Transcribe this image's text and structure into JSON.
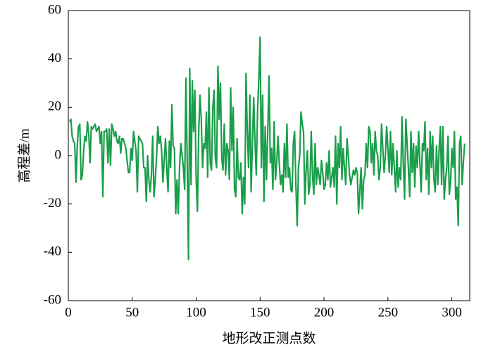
{
  "chart_data": {
    "type": "line",
    "xlabel": "地形改正测点数",
    "ylabel": "高程差/m",
    "xlim": [
      0,
      314
    ],
    "xticks": [
      0,
      50,
      100,
      150,
      200,
      250,
      300
    ],
    "ylim": [
      -60,
      60
    ],
    "yticks": [
      -60,
      -40,
      -20,
      0,
      20,
      40,
      60
    ],
    "series": [
      {
        "color": "#1a9e4a",
        "x": [
          1,
          2,
          3,
          4,
          5,
          6,
          7,
          8,
          9,
          10,
          11,
          12,
          13,
          14,
          15,
          16,
          17,
          18,
          19,
          20,
          21,
          22,
          23,
          24,
          25,
          26,
          27,
          28,
          29,
          30,
          31,
          32,
          33,
          34,
          35,
          36,
          37,
          38,
          39,
          40,
          41,
          42,
          43,
          44,
          45,
          46,
          47,
          48,
          49,
          50,
          51,
          52,
          53,
          54,
          55,
          56,
          57,
          58,
          59,
          60,
          61,
          62,
          63,
          64,
          65,
          66,
          67,
          68,
          69,
          70,
          71,
          72,
          73,
          74,
          75,
          76,
          77,
          78,
          79,
          80,
          81,
          82,
          83,
          84,
          85,
          86,
          87,
          88,
          89,
          90,
          91,
          92,
          93,
          94,
          95,
          96,
          97,
          98,
          99,
          100,
          101,
          102,
          103,
          104,
          105,
          106,
          107,
          108,
          109,
          110,
          111,
          112,
          113,
          114,
          115,
          116,
          117,
          118,
          119,
          120,
          121,
          122,
          123,
          124,
          125,
          126,
          127,
          128,
          129,
          130,
          131,
          132,
          133,
          134,
          135,
          136,
          137,
          138,
          139,
          140,
          141,
          142,
          143,
          144,
          145,
          146,
          147,
          148,
          149,
          150,
          151,
          152,
          153,
          154,
          155,
          156,
          157,
          158,
          159,
          160,
          161,
          162,
          163,
          164,
          165,
          166,
          167,
          168,
          169,
          170,
          171,
          172,
          173,
          174,
          175,
          176,
          177,
          178,
          179,
          180,
          181,
          182,
          183,
          184,
          185,
          186,
          187,
          188,
          189,
          190,
          191,
          192,
          193,
          194,
          195,
          196,
          197,
          198,
          199,
          200,
          201,
          202,
          203,
          204,
          205,
          206,
          207,
          208,
          209,
          210,
          211,
          212,
          213,
          214,
          215,
          216,
          217,
          218,
          219,
          220,
          221,
          222,
          223,
          224,
          225,
          226,
          227,
          228,
          229,
          230,
          231,
          232,
          233,
          234,
          235,
          236,
          237,
          238,
          239,
          240,
          241,
          242,
          243,
          244,
          245,
          246,
          247,
          248,
          249,
          250,
          251,
          252,
          253,
          254,
          255,
          256,
          257,
          258,
          259,
          260,
          261,
          262,
          263,
          264,
          265,
          266,
          267,
          268,
          269,
          270,
          271,
          272,
          273,
          274,
          275,
          276,
          277,
          278,
          279,
          280,
          281,
          282,
          283,
          284,
          285,
          286,
          287,
          288,
          289,
          290,
          291,
          292,
          293,
          294,
          295,
          296,
          297,
          298,
          299,
          300,
          301,
          302,
          303,
          304,
          305,
          306,
          307,
          308,
          309,
          310
        ],
        "values": [
          14,
          15,
          8,
          6,
          5,
          -11,
          4,
          12,
          13,
          -10,
          -8,
          2,
          8,
          6,
          14,
          9,
          -3,
          12,
          11,
          12,
          13,
          10,
          11,
          12,
          5,
          10,
          -17,
          10,
          10,
          11,
          -3,
          11,
          -4,
          13,
          11,
          8,
          10,
          6,
          5,
          8,
          1,
          7,
          7,
          5,
          3,
          -2,
          -7,
          -7,
          3,
          -2,
          10,
          6,
          2,
          -15,
          8,
          7,
          6,
          5,
          -5,
          -5,
          -19,
          0,
          -10,
          -15,
          -8,
          8,
          -17,
          -10,
          -1,
          12,
          5,
          8,
          2,
          -11,
          -2,
          7,
          -5,
          -15,
          6,
          -5,
          21,
          4,
          3,
          -24,
          -10,
          -24,
          -5,
          5,
          0,
          -5,
          -14,
          32,
          -3,
          -43,
          36,
          -12,
          31,
          10,
          27,
          -10,
          -23,
          10,
          25,
          15,
          -5,
          5,
          3,
          18,
          -9,
          28,
          -3,
          -6,
          20,
          27,
          -1,
          -5,
          37,
          15,
          30,
          -1,
          -6,
          13,
          -8,
          5,
          2,
          -10,
          28,
          2,
          20,
          -14,
          -17,
          7,
          -9,
          -10,
          -3,
          -24,
          -9,
          -20,
          34,
          10,
          -5,
          25,
          -15,
          5,
          24,
          6,
          -8,
          18,
          32,
          49,
          -5,
          25,
          -19,
          12,
          -10,
          10,
          33,
          -3,
          3,
          -14,
          14,
          -10,
          -3,
          8,
          -3,
          -12,
          -8,
          -15,
          5,
          -9,
          13,
          -9,
          -5,
          -14,
          -15,
          5,
          10,
          -12,
          -29,
          -5,
          0,
          18,
          13,
          10,
          -20,
          -6,
          2,
          -16,
          -12,
          10,
          -8,
          -16,
          5,
          -12,
          -5,
          -8,
          -12,
          -2,
          -7,
          -14,
          -12,
          -3,
          -10,
          2,
          -13,
          -9,
          -5,
          -13,
          8,
          -20,
          5,
          -5,
          12,
          -10,
          3,
          -5,
          -12,
          7,
          0,
          -8,
          -12,
          -9,
          -6,
          -8,
          -5,
          -7,
          -24,
          -15,
          -5,
          -22,
          -10,
          -8,
          5,
          -5,
          12,
          10,
          -3,
          5,
          -8,
          10,
          2,
          0,
          -10,
          -5,
          13,
          3,
          -7,
          0,
          12,
          3,
          -7,
          10,
          -8,
          5,
          -5,
          -15,
          2,
          -13,
          -5,
          -10,
          16,
          -3,
          -18,
          15,
          5,
          -5,
          -17,
          10,
          -7,
          5,
          -13,
          4,
          -5,
          10,
          -3,
          -15,
          5,
          2,
          14,
          -10,
          3,
          -16,
          10,
          -5,
          8,
          -10,
          -15,
          4,
          -12,
          2,
          12,
          -12,
          12,
          -18,
          -10,
          -5,
          8,
          -16,
          -11,
          3,
          -5,
          10,
          -18,
          -13,
          -29,
          5,
          8,
          -12,
          -3,
          5
        ]
      }
    ]
  }
}
